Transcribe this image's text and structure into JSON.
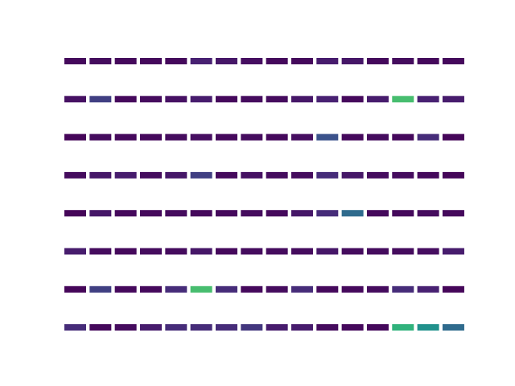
{
  "chart_data": {
    "type": "heatmap_grid",
    "tick_labels": false,
    "color_range": [
      0,
      1
    ],
    "cells": [
      [
        0.03,
        0.04,
        0.03,
        0.03,
        0.03,
        0.12,
        0.08,
        0.05,
        0.03,
        0.03,
        0.1,
        0.08,
        0.03,
        0.04,
        0.03,
        0.03
      ],
      [
        0.06,
        0.2,
        0.03,
        0.04,
        0.06,
        0.1,
        0.03,
        0.04,
        0.04,
        0.08,
        0.12,
        0.03,
        0.1,
        0.7,
        0.12,
        0.1
      ],
      [
        0.02,
        0.04,
        0.03,
        0.03,
        0.04,
        0.05,
        0.03,
        0.04,
        0.03,
        0.05,
        0.25,
        0.03,
        0.04,
        0.03,
        0.15,
        0.02
      ],
      [
        0.04,
        0.08,
        0.1,
        0.04,
        0.08,
        0.2,
        0.03,
        0.06,
        0.04,
        0.04,
        0.15,
        0.08,
        0.04,
        0.04,
        0.03,
        0.02
      ],
      [
        0.02,
        0.08,
        0.03,
        0.03,
        0.04,
        0.03,
        0.03,
        0.04,
        0.03,
        0.08,
        0.15,
        0.35,
        0.03,
        0.03,
        0.04,
        0.03
      ],
      [
        0.1,
        0.04,
        0.03,
        0.04,
        0.04,
        0.08,
        0.03,
        0.04,
        0.04,
        0.04,
        0.08,
        0.04,
        0.04,
        0.04,
        0.05,
        0.1
      ],
      [
        0.02,
        0.2,
        0.03,
        0.03,
        0.15,
        0.7,
        0.15,
        0.03,
        0.04,
        0.15,
        0.03,
        0.03,
        0.04,
        0.15,
        0.12,
        0.02
      ],
      [
        0.15,
        0.03,
        0.04,
        0.1,
        0.15,
        0.15,
        0.15,
        0.18,
        0.1,
        0.1,
        0.04,
        0.03,
        0.03,
        0.65,
        0.5,
        0.35
      ]
    ]
  }
}
